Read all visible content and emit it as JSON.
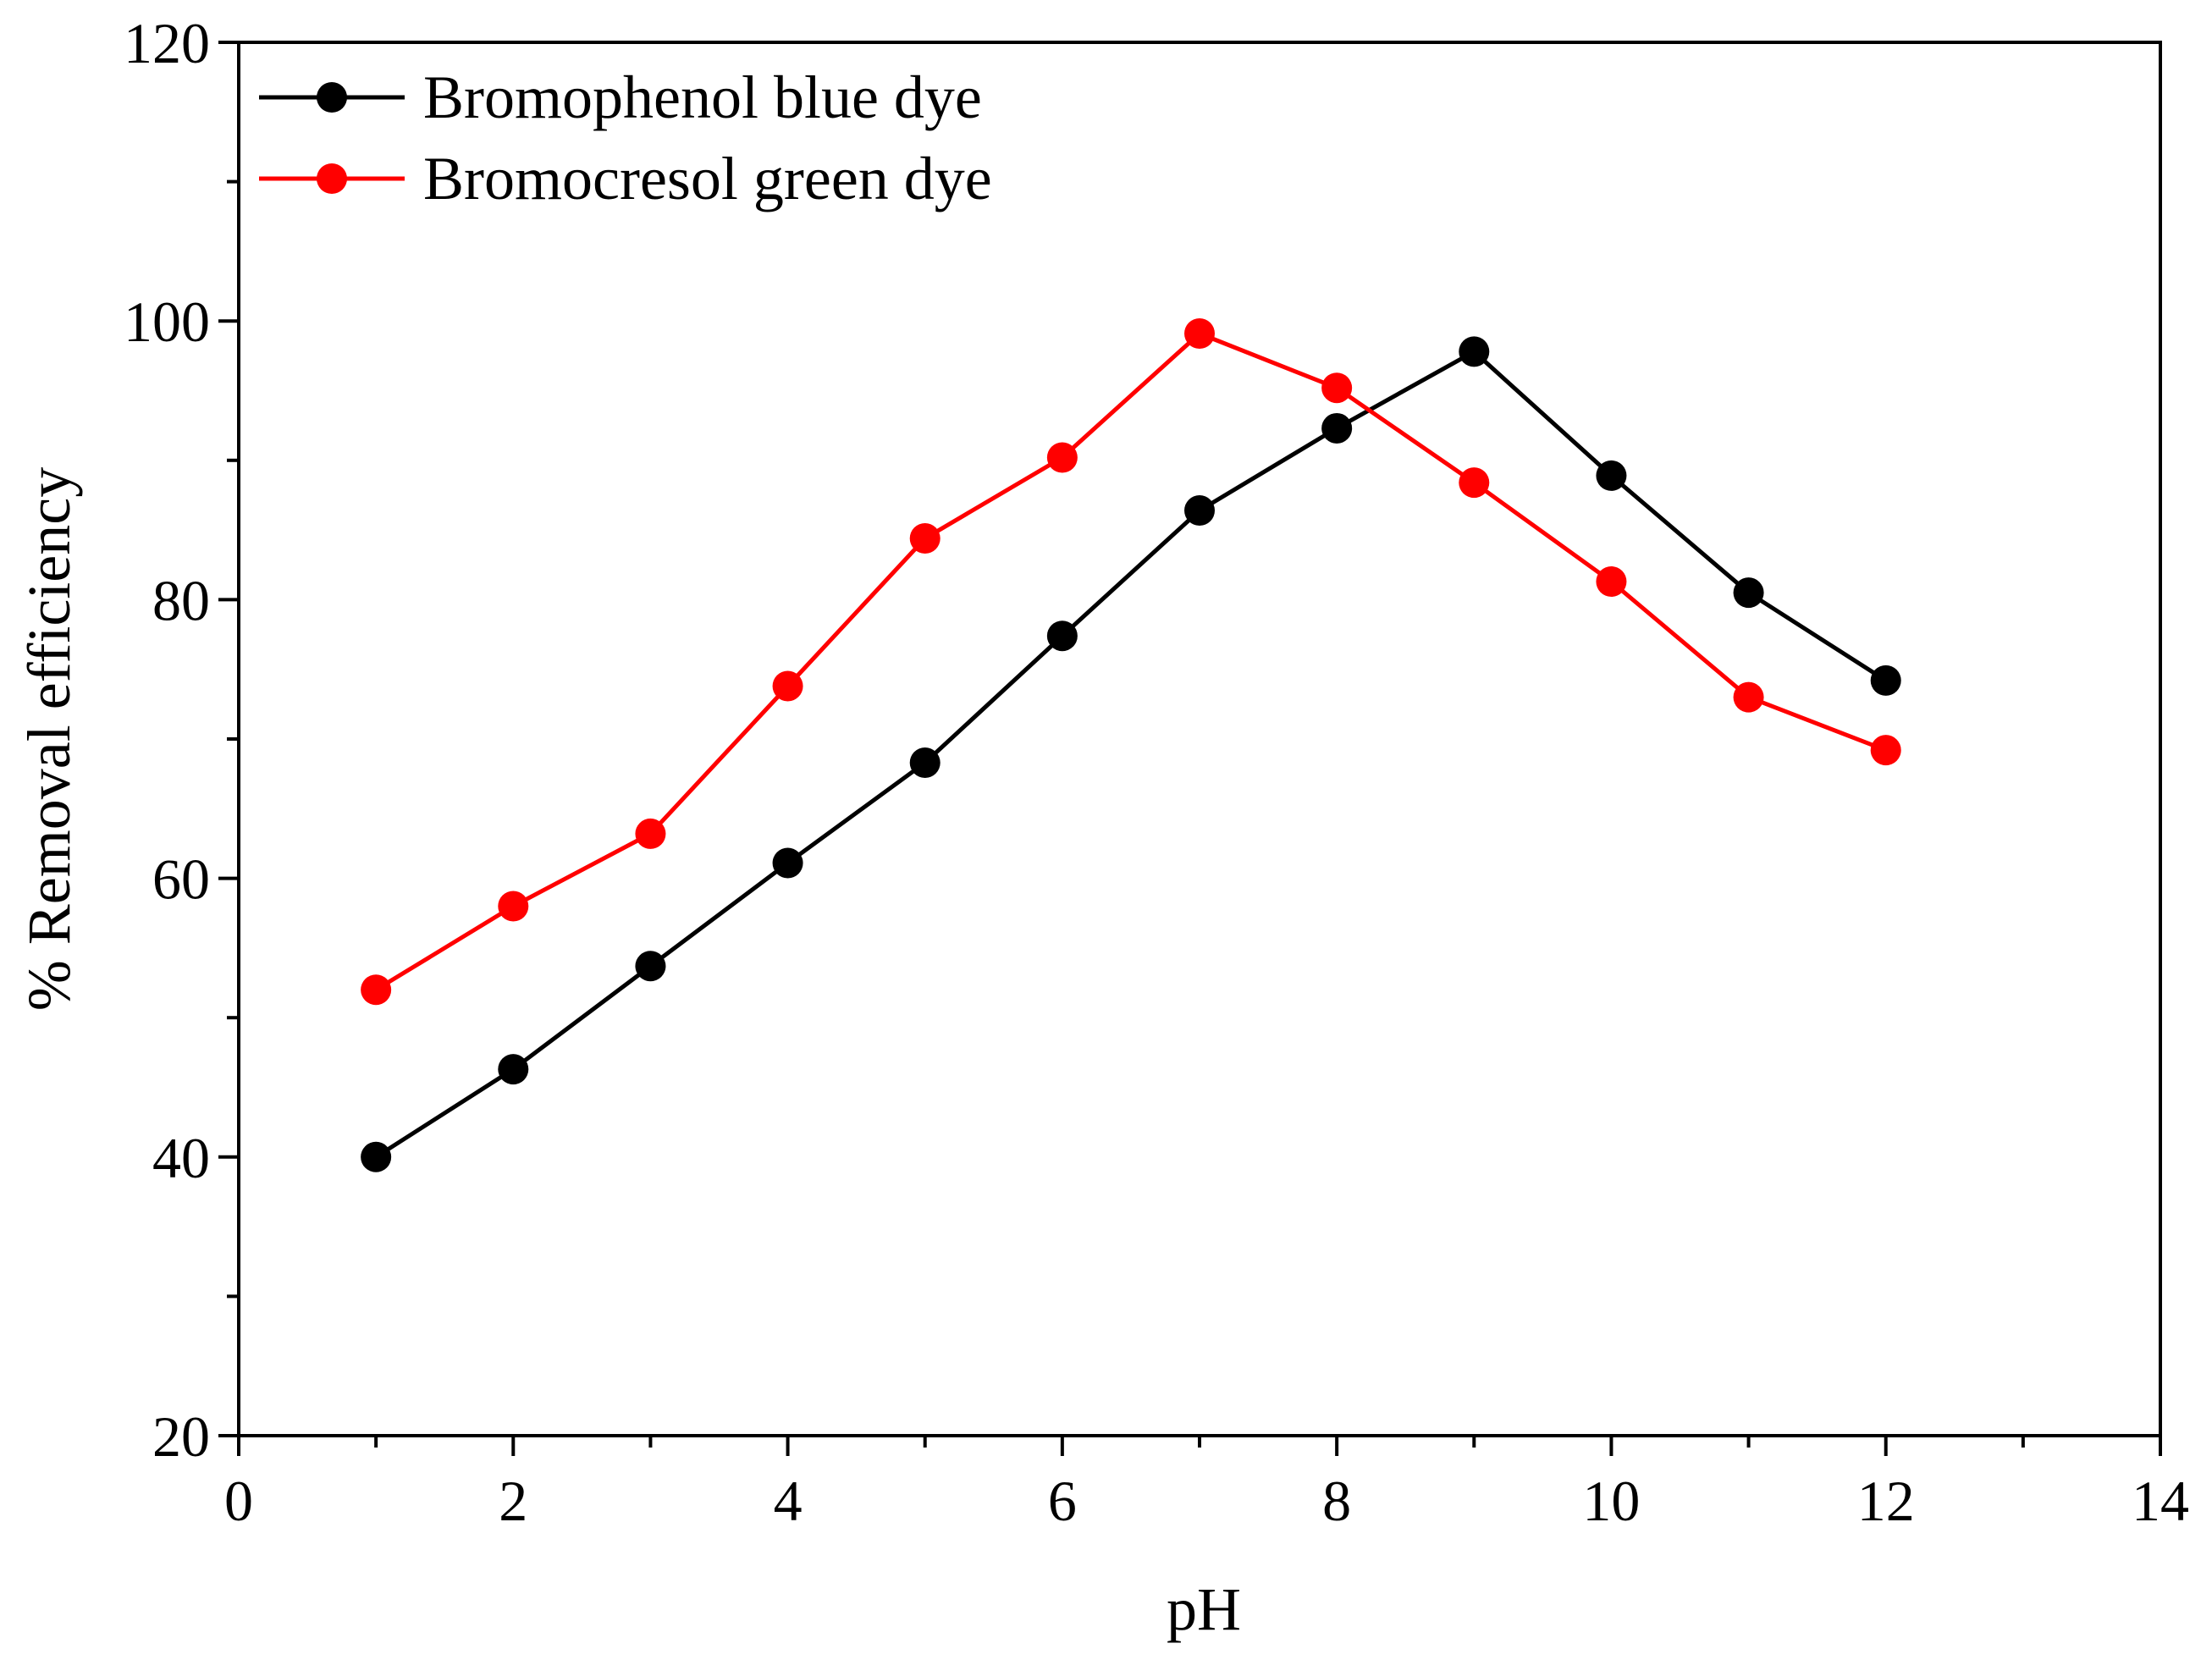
{
  "chart_data": {
    "type": "line",
    "title": "",
    "xlabel": "pH",
    "ylabel": "% Removal efficiency",
    "xlim": [
      0,
      14
    ],
    "ylim": [
      20,
      120
    ],
    "xticks": [
      0,
      2,
      4,
      6,
      8,
      10,
      12,
      14
    ],
    "xtick_labels": [
      "0",
      "2",
      "4",
      "6",
      "8",
      "10",
      "12",
      "14"
    ],
    "x_minor_step": 1,
    "yticks": [
      20,
      40,
      60,
      80,
      100,
      120
    ],
    "ytick_labels": [
      "20",
      "40",
      "60",
      "80",
      "100",
      "120"
    ],
    "y_minor_step": 10,
    "grid": false,
    "legend_position": "top-left",
    "series": [
      {
        "name": "Bromophenol blue dye",
        "color": "#000000",
        "x": [
          1,
          2,
          3,
          4,
          5,
          6,
          7,
          8,
          9,
          10,
          11,
          12
        ],
        "values": [
          40.0,
          46.3,
          53.7,
          61.1,
          68.3,
          77.4,
          86.4,
          92.3,
          97.8,
          88.9,
          80.5,
          74.2
        ]
      },
      {
        "name": "Bromocresol green dye",
        "color": "#ff0000",
        "x": [
          1,
          2,
          3,
          4,
          5,
          6,
          7,
          8,
          9,
          10,
          11,
          12
        ],
        "values": [
          52.0,
          58.0,
          63.2,
          73.8,
          84.4,
          90.2,
          99.1,
          95.2,
          88.4,
          81.3,
          73.0,
          69.2
        ]
      }
    ]
  }
}
